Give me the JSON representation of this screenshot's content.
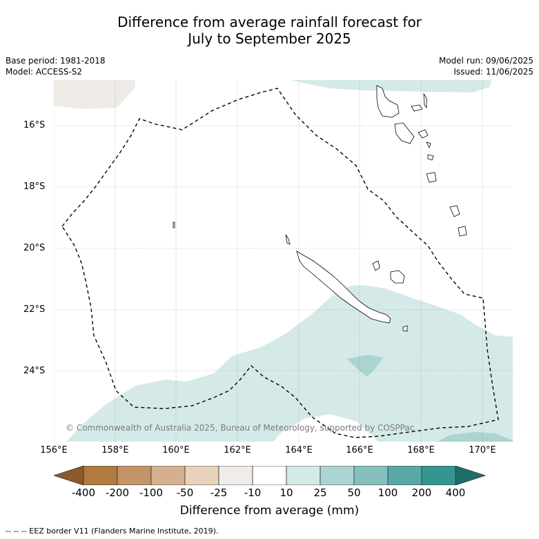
{
  "title_line1": "Difference from average rainfall forecast for",
  "title_line2": "July to September 2025",
  "base_period": "Base period: 1981-2018",
  "model": "Model: ACCESS-S2",
  "model_run": "Model run: 09/06/2025",
  "issued": "Issued: 11/06/2025",
  "lat_labels": [
    "16°S",
    "18°S",
    "20°S",
    "22°S",
    "24°S"
  ],
  "lon_labels": [
    "156°E",
    "158°E",
    "160°E",
    "162°E",
    "164°E",
    "166°E",
    "168°E",
    "170°E"
  ],
  "copyright": "© Commonwealth of Australia 2025, Bureau of Meteorology, supported by COSPPac",
  "colorbar": {
    "title": "Difference from average (mm)",
    "ticks": [
      "-400",
      "-200",
      "-100",
      "-50",
      "-25",
      "-10",
      "10",
      "25",
      "50",
      "100",
      "200",
      "400"
    ],
    "colors": [
      "#8c5a28",
      "#b07a40",
      "#c49468",
      "#d4b090",
      "#e8d2bc",
      "#f0ece8",
      "#ffffff",
      "#d5eae8",
      "#acd4d2",
      "#86c0be",
      "#5aa8a6",
      "#35958f",
      "#1e6e6a"
    ]
  },
  "eez_legend": "--  --  -- EEZ border V11 (Flanders Marine Institute, 2019).",
  "colors": {
    "positive_light": "#d5eae8",
    "positive_mid": "#acd4d2",
    "negative_light": "#efebe7"
  }
}
